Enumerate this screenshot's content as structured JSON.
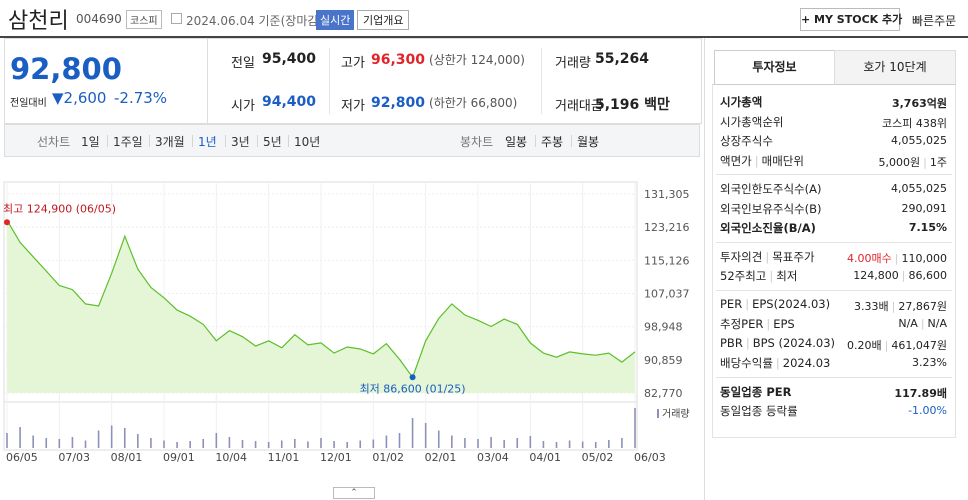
{
  "header": {
    "name": "삼천리",
    "code": "004690",
    "market": "코스피",
    "date": "2024.06.04 기준(장마감)",
    "realtime": "실시간",
    "company_info": "기업개요",
    "my_stock": "+ MY STOCK 추가",
    "quick_order": "빠른주문"
  },
  "price": {
    "current": "92,800",
    "change_label": "전일대비",
    "change": "▼2,600",
    "rate": "-2.73%"
  },
  "summary": {
    "rows": [
      [
        {
          "label": "전일",
          "value": "95,400"
        },
        {
          "label": "고가",
          "value": "96,300",
          "note": "(상한가 124,000)"
        },
        {
          "label": "거래량",
          "value": "55,264"
        }
      ],
      [
        {
          "label": "시가",
          "value": "94,400"
        },
        {
          "label": "저가",
          "value": "92,800",
          "note": "(하한가 66,800)"
        },
        {
          "label": "거래대금",
          "value": "5,196 백만"
        }
      ]
    ]
  },
  "tabs": {
    "line_label": "선차트",
    "line": [
      "1일",
      "1주일",
      "3개월",
      "1년",
      "3년",
      "5년",
      "10년"
    ],
    "candle_label": "봉차트",
    "candle": [
      "일봉",
      "주봉",
      "월봉"
    ]
  },
  "chart_data": {
    "type": "line",
    "color": "#5cbf2a",
    "fill": "#e4f6d6",
    "categories": [
      "06/05",
      null,
      null,
      null,
      "07/03",
      null,
      null,
      null,
      "08/01",
      null,
      null,
      null,
      "09/01",
      null,
      null,
      null,
      "10/04",
      null,
      null,
      null,
      "11/01",
      null,
      null,
      null,
      "12/01",
      null,
      null,
      null,
      "01/02",
      null,
      null,
      null,
      "02/01",
      null,
      null,
      null,
      "03/04",
      null,
      null,
      null,
      "04/01",
      null,
      null,
      null,
      "05/02",
      null,
      null,
      null,
      "06/03"
    ],
    "values": [
      124900,
      119500,
      116000,
      112500,
      109000,
      108000,
      104500,
      104000,
      112000,
      121000,
      113000,
      108500,
      106000,
      103000,
      101500,
      99500,
      95500,
      98000,
      96500,
      94200,
      95500,
      93800,
      97000,
      94500,
      95000,
      92500,
      94000,
      93500,
      92300,
      94800,
      91000,
      86600,
      95500,
      101000,
      104500,
      101800,
      100500,
      99000,
      100800,
      99500,
      95000,
      92500,
      91500,
      92800,
      92300,
      92000,
      92500,
      90300,
      92800
    ],
    "ylim": [
      82770,
      131305
    ],
    "yticks": [
      {
        "value": 82770,
        "label": "82,770"
      },
      {
        "value": 90859,
        "label": "90,859"
      },
      {
        "value": 98948,
        "label": "98,948"
      },
      {
        "value": 107037,
        "label": "107,037"
      },
      {
        "value": 115126,
        "label": "115,126"
      },
      {
        "value": 123216,
        "label": "123,216"
      },
      {
        "value": 131305,
        "label": "131,305"
      }
    ],
    "grid": true,
    "max_label": "최고 124,900 (06/05)",
    "min_label": "최저 86,600 (01/25)",
    "volume_label": "거래량",
    "volume_color": "#8d90b8",
    "volume": [
      30000,
      42000,
      25000,
      20000,
      18000,
      22000,
      15000,
      35000,
      45000,
      40000,
      28000,
      20000,
      15000,
      12000,
      14000,
      18000,
      30000,
      22000,
      16000,
      14000,
      12000,
      15000,
      18000,
      13000,
      20000,
      14000,
      12000,
      15000,
      17000,
      25000,
      30000,
      60000,
      50000,
      35000,
      25000,
      20000,
      18000,
      22000,
      16000,
      20000,
      24000,
      14000,
      12000,
      15000,
      13000,
      12000,
      16000,
      20000,
      80000
    ]
  },
  "invest": {
    "tabs": [
      "투자정보",
      "호가 10단계"
    ],
    "groups": [
      [
        {
          "label": [
            "시가총액"
          ],
          "value": [
            "3,763억원"
          ]
        },
        {
          "label": [
            "시가총액순위"
          ],
          "value": [
            "코스피 438위"
          ]
        },
        {
          "label": [
            "상장주식수"
          ],
          "value": [
            "4,055,025"
          ]
        },
        {
          "label": [
            "액면가",
            "매매단위"
          ],
          "value": [
            "5,000원",
            "1주"
          ]
        }
      ],
      [
        {
          "label": [
            "외국인한도주식수(A)"
          ],
          "value": [
            "4,055,025"
          ]
        },
        {
          "label": [
            "외국인보유주식수(B)"
          ],
          "value": [
            "290,091"
          ]
        },
        {
          "label": [
            "외국인소진율(B/A)"
          ],
          "value": [
            "7.15%"
          ]
        }
      ],
      [
        {
          "label": [
            "투자의견",
            "목표주가"
          ],
          "value": [
            "4.00매수",
            "110,000"
          ]
        },
        {
          "label": [
            "52주최고",
            "최저"
          ],
          "value": [
            "124,800",
            "86,600"
          ]
        }
      ],
      [
        {
          "label": [
            "PER",
            "EPS(2024.03)"
          ],
          "value": [
            "3.33배",
            "27,867원"
          ]
        },
        {
          "label": [
            "추정PER",
            "EPS"
          ],
          "value": [
            "N/A",
            "N/A"
          ]
        },
        {
          "label": [
            "PBR",
            "BPS (2024.03)"
          ],
          "value": [
            "0.20배",
            "461,047원"
          ]
        },
        {
          "label": [
            "배당수익률",
            "2024.03"
          ],
          "value": [
            "3.23%"
          ]
        }
      ],
      [
        {
          "label": [
            "동일업종 PER"
          ],
          "value": [
            "117.89배"
          ]
        },
        {
          "label": [
            "동일업종 등락률"
          ],
          "value": [
            "-1.00%"
          ]
        }
      ]
    ]
  }
}
